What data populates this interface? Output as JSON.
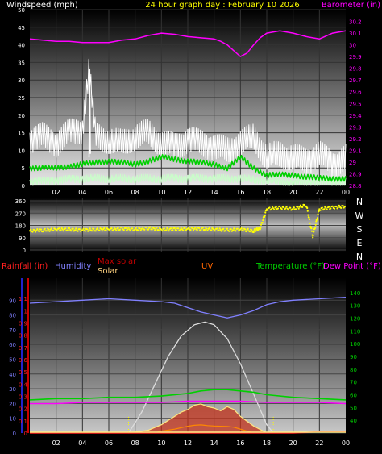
{
  "chart_data": [
    {
      "type": "line",
      "panel": "wind-pressure",
      "title": "24 hour graph day : February 10 2026",
      "left_axis_label": "Windspeed (mph)",
      "right_axis_label": "Barometer (in)",
      "x_tick_labels": [
        "02",
        "04",
        "06",
        "08",
        "10",
        "12",
        "14",
        "16",
        "18",
        "20",
        "22",
        "00"
      ],
      "ylim_left": [
        0,
        50
      ],
      "ylim_right": [
        28.8,
        30.3
      ],
      "y_ticks_left": [
        "0",
        "5",
        "10",
        "15",
        "20",
        "25",
        "30",
        "35",
        "40",
        "45",
        "50"
      ],
      "y_ticks_right": [
        "28.8",
        "28.9",
        "29",
        "29.1",
        "29.2",
        "29.3",
        "29.4",
        "29.5",
        "29.6",
        "29.7",
        "29.8",
        "29.9",
        "30",
        "30.1",
        "30.2"
      ],
      "colors": {
        "gust": "#ffffff",
        "average": "#00d000",
        "minimum": "#c8ffc8",
        "barometer": "#ff00ff"
      },
      "barometer_series": {
        "x_hours": [
          0,
          1,
          2,
          3,
          4,
          5,
          6,
          7,
          8,
          9,
          10,
          11,
          12,
          13,
          14,
          14.5,
          15,
          15.5,
          16,
          16.5,
          17,
          17.5,
          18,
          19,
          20,
          21,
          22,
          23,
          24
        ],
        "values": [
          30.05,
          30.04,
          30.03,
          30.03,
          30.02,
          30.02,
          30.02,
          30.04,
          30.05,
          30.08,
          30.1,
          30.09,
          30.07,
          30.06,
          30.05,
          30.03,
          30.0,
          29.95,
          29.9,
          29.93,
          30.0,
          30.06,
          30.1,
          30.12,
          30.1,
          30.07,
          30.05,
          30.1,
          30.12
        ]
      },
      "gust_series": {
        "x_hours": [
          0,
          1,
          2,
          3,
          4,
          4.5,
          5,
          6,
          7,
          8,
          9,
          10,
          11,
          12,
          13,
          14,
          15,
          16,
          17,
          18,
          19,
          20,
          21,
          22,
          23,
          24
        ],
        "values": [
          13,
          14,
          12,
          15,
          16,
          33,
          14,
          13,
          12,
          14,
          15,
          12,
          11,
          13,
          12,
          11,
          10,
          12,
          14,
          8,
          9,
          8,
          7,
          9,
          6,
          8
        ]
      },
      "average_series": {
        "x_hours": [
          0,
          2,
          4,
          6,
          8,
          10,
          12,
          14,
          15,
          16,
          17,
          18,
          20,
          22,
          24
        ],
        "values": [
          5,
          5,
          6,
          7,
          6,
          8,
          7,
          6,
          5,
          8,
          5,
          3,
          3,
          2,
          2
        ]
      },
      "minimum_series": {
        "x_hours": [
          0,
          4,
          8,
          12,
          16,
          20,
          24
        ],
        "values": [
          1,
          2,
          2,
          2,
          2,
          1,
          1
        ]
      }
    },
    {
      "type": "scatter",
      "panel": "wind-direction",
      "ylim": [
        0,
        360
      ],
      "y_ticks": [
        "0",
        "90",
        "180",
        "270",
        "360"
      ],
      "direction_labels": [
        "N",
        "W",
        "S",
        "E",
        "N"
      ],
      "color": "#ffff00",
      "x_hours": [
        0,
        1,
        2,
        3,
        4,
        5,
        6,
        7,
        8,
        9,
        10,
        11,
        12,
        13,
        14,
        15,
        16,
        17,
        17.5,
        18,
        19,
        20,
        21,
        21.5,
        22,
        23,
        24
      ],
      "values": [
        140,
        145,
        150,
        150,
        145,
        150,
        150,
        155,
        150,
        160,
        150,
        150,
        155,
        155,
        150,
        145,
        150,
        140,
        160,
        300,
        310,
        300,
        330,
        100,
        300,
        310,
        320
      ]
    },
    {
      "type": "line",
      "panel": "rain-humidity-solar-temp",
      "legend": [
        {
          "label": "Rainfall (in)",
          "color": "#ff2020"
        },
        {
          "label": "Humidity",
          "color": "#8080ff"
        },
        {
          "label": "Max solar",
          "color": "#c00000"
        },
        {
          "label": "Solar",
          "color": "#ffd27f"
        },
        {
          "label": "UV",
          "color": "#ff6600"
        },
        {
          "label": "Temperature (°F)",
          "color": "#00d000"
        },
        {
          "label": "Dew Point (°F)",
          "color": "#ff00ff"
        }
      ],
      "x_tick_labels": [
        "02",
        "04",
        "06",
        "08",
        "10",
        "12",
        "14",
        "16",
        "18",
        "20",
        "22",
        "00"
      ],
      "rain_axis": {
        "range": [
          0,
          1.2
        ],
        "ticks": [
          "0",
          "0.1",
          "0.2",
          "0.3",
          "0.4",
          "0.5",
          "0.6",
          "0.7",
          "0.8",
          "0.9",
          "1",
          "1.1"
        ],
        "color": "#ff2020"
      },
      "humidity_axis": {
        "range": [
          0,
          100
        ],
        "ticks": [
          "0",
          "10",
          "20",
          "30",
          "40",
          "50",
          "60",
          "70",
          "80",
          "90"
        ],
        "color": "#8080ff"
      },
      "temp_axis": {
        "range": [
          30,
          145
        ],
        "ticks": [
          "40",
          "50",
          "60",
          "70",
          "80",
          "90",
          "100",
          "110",
          "120",
          "130",
          "140"
        ],
        "color": "#00d000"
      },
      "humidity_series": {
        "x_hours": [
          0,
          2,
          4,
          6,
          8,
          10,
          11,
          12,
          13,
          14,
          15,
          16,
          17,
          18,
          19,
          20,
          22,
          24
        ],
        "values": [
          88,
          89,
          90,
          91,
          90,
          89,
          88,
          85,
          82,
          80,
          78,
          80,
          83,
          87,
          89,
          90,
          91,
          92
        ]
      },
      "temperature_series": {
        "x_hours": [
          0,
          2,
          4,
          6,
          8,
          10,
          12,
          13,
          14,
          15,
          16,
          17,
          18,
          20,
          22,
          24
        ],
        "values": [
          56,
          57,
          57,
          58,
          58,
          59,
          61,
          63,
          64,
          64,
          63,
          62,
          60,
          58,
          57,
          56
        ]
      },
      "dewpoint_series": {
        "x_hours": [
          0,
          2,
          4,
          6,
          8,
          10,
          12,
          14,
          16,
          18,
          20,
          22,
          24
        ],
        "values": [
          53,
          53,
          54,
          54,
          54,
          54,
          55,
          55,
          55,
          54,
          54,
          54,
          53
        ]
      },
      "max_solar_series": {
        "x_hours": [
          7.5,
          8.5,
          9.5,
          10.5,
          11.5,
          12.5,
          13.3,
          14,
          15,
          16,
          17,
          18,
          18.5
        ],
        "values": [
          0,
          150,
          350,
          550,
          700,
          780,
          800,
          780,
          680,
          500,
          280,
          60,
          0
        ]
      },
      "solar_series": {
        "x_hours": [
          7.5,
          9,
          10,
          10.5,
          11,
          11.5,
          12,
          12.5,
          13,
          13.5,
          14,
          14.5,
          15,
          15.5,
          16,
          17,
          18
        ],
        "values": [
          0,
          20,
          60,
          90,
          120,
          150,
          170,
          200,
          210,
          190,
          180,
          160,
          190,
          170,
          120,
          50,
          0
        ]
      },
      "uv_series": {
        "x_hours": [
          9.5,
          10,
          11,
          12,
          12.5,
          13,
          13.5,
          14,
          15,
          15.5,
          16,
          17
        ],
        "values": [
          0,
          0.1,
          0.2,
          0.35,
          0.4,
          0.42,
          0.38,
          0.36,
          0.34,
          0.3,
          0.2,
          0
        ]
      },
      "rain_series": {
        "x_hours": [
          0,
          20,
          22,
          24
        ],
        "values": [
          0,
          0,
          0.01,
          0.01
        ]
      },
      "solar_scale_max": 1000,
      "uv_scale_max": 1.2
    }
  ]
}
